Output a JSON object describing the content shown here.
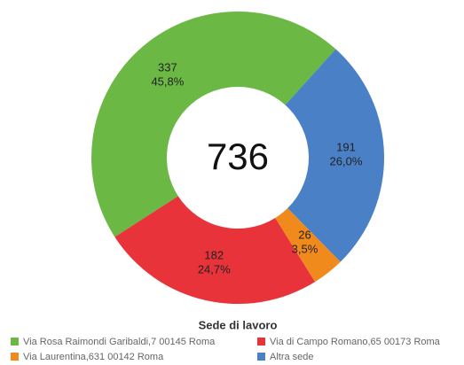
{
  "chart_data": {
    "type": "donut",
    "total": 736,
    "legend_title": "Sede di lavoro",
    "categories": [
      "Via Rosa Raimondi Garibaldi,7 00145 Roma",
      "Via di Campo Romano,65 00173 Roma",
      "Via Laurentina,631 00142 Roma",
      "Altra sede"
    ],
    "values": [
      337,
      182,
      26,
      191
    ],
    "percentages": [
      45.8,
      24.7,
      3.5,
      26.0
    ],
    "percentage_labels": [
      "45,8%",
      "24,7%",
      "3,5%",
      "26,0%"
    ],
    "colors": [
      "#6bb944",
      "#e8333b",
      "#f08a1c",
      "#4a80c6"
    ]
  }
}
